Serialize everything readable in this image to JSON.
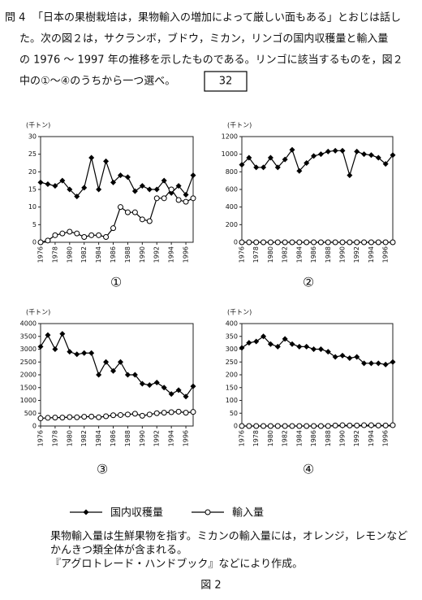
{
  "question": {
    "number": "問 4",
    "lines": [
      "「日本の果樹栽培は，果物輸入の増加によって厳しい面もある」とおじは話し",
      "た。次の図２は，サクランボ，ブドウ，ミカン，リンゴの国内収穫量と輸入量",
      "の 1976 ～ 1997 年の推移を示したものである。リンゴに該当するものを，図２",
      "中の①～④のうちから一つ選べ。"
    ],
    "answer_box": "32"
  },
  "chart_data": [
    {
      "type": "line",
      "label": "①",
      "y_label": "(千トン)",
      "x": [
        1976,
        1977,
        1978,
        1979,
        1980,
        1981,
        1982,
        1983,
        1984,
        1985,
        1986,
        1987,
        1988,
        1989,
        1990,
        1991,
        1992,
        1993,
        1994,
        1995,
        1996,
        1997
      ],
      "xlim": [
        1976,
        1997
      ],
      "xticks": [
        1976,
        1978,
        1980,
        1982,
        1984,
        1986,
        1988,
        1990,
        1992,
        1994,
        1996
      ],
      "ylim": [
        0,
        30
      ],
      "yticks": [
        0,
        5,
        10,
        15,
        20,
        25,
        30
      ],
      "series": [
        {
          "name": "国内収穫量",
          "color": "#000",
          "marker": "diamond",
          "values": [
            17,
            16.5,
            16,
            17.5,
            15,
            13,
            15.5,
            24,
            15,
            23,
            17,
            19,
            18.5,
            14.5,
            16,
            15,
            15,
            17.5,
            14,
            16,
            13.5,
            19
          ]
        },
        {
          "name": "輸入量",
          "color": "#000",
          "marker": "circle",
          "values": [
            0,
            0.5,
            2,
            2.5,
            3,
            2.5,
            1.5,
            2,
            2,
            1.5,
            4,
            10,
            8.5,
            8.5,
            6.5,
            6,
            12.5,
            12.5,
            15,
            12,
            11.5,
            12.5
          ]
        }
      ]
    },
    {
      "type": "line",
      "label": "②",
      "y_label": "(千トン)",
      "x": [
        1976,
        1977,
        1978,
        1979,
        1980,
        1981,
        1982,
        1983,
        1984,
        1985,
        1986,
        1987,
        1988,
        1989,
        1990,
        1991,
        1992,
        1993,
        1994,
        1995,
        1996,
        1997
      ],
      "xlim": [
        1976,
        1997
      ],
      "xticks": [
        1976,
        1978,
        1980,
        1982,
        1984,
        1986,
        1988,
        1990,
        1992,
        1994,
        1996
      ],
      "ylim": [
        0,
        1200
      ],
      "yticks": [
        0,
        200,
        400,
        600,
        800,
        1000,
        1200
      ],
      "series": [
        {
          "color": "#000",
          "marker": "diamond",
          "values": [
            880,
            960,
            850,
            850,
            960,
            850,
            940,
            1050,
            810,
            900,
            980,
            1000,
            1030,
            1040,
            1040,
            760,
            1030,
            1000,
            990,
            960,
            890,
            990
          ]
        },
        {
          "color": "#000",
          "marker": "circle",
          "values": [
            0,
            0,
            0,
            0,
            0,
            0,
            0,
            0,
            0,
            0,
            0,
            0,
            0,
            0,
            0,
            0,
            0,
            0,
            0,
            0,
            0,
            0
          ]
        }
      ]
    },
    {
      "type": "line",
      "label": "③",
      "y_label": "(千トン)",
      "x": [
        1976,
        1977,
        1978,
        1979,
        1980,
        1981,
        1982,
        1983,
        1984,
        1985,
        1986,
        1987,
        1988,
        1989,
        1990,
        1991,
        1992,
        1993,
        1994,
        1995,
        1996,
        1997
      ],
      "xlim": [
        1976,
        1997
      ],
      "xticks": [
        1976,
        1978,
        1980,
        1982,
        1984,
        1986,
        1988,
        1990,
        1992,
        1994,
        1996
      ],
      "ylim": [
        0,
        4000
      ],
      "yticks": [
        0,
        500,
        1000,
        1500,
        2000,
        2500,
        3000,
        3500,
        4000
      ],
      "series": [
        {
          "color": "#000",
          "marker": "diamond",
          "values": [
            3100,
            3550,
            3000,
            3600,
            2900,
            2800,
            2850,
            2850,
            2000,
            2500,
            2150,
            2500,
            2000,
            2000,
            1650,
            1600,
            1700,
            1500,
            1250,
            1400,
            1150,
            1550
          ]
        },
        {
          "color": "#000",
          "marker": "circle",
          "values": [
            300,
            320,
            330,
            330,
            350,
            340,
            360,
            370,
            340,
            380,
            420,
            430,
            450,
            480,
            400,
            450,
            500,
            520,
            540,
            560,
            520,
            550
          ]
        }
      ]
    },
    {
      "type": "line",
      "label": "④",
      "y_label": "(千トン)",
      "x": [
        1976,
        1977,
        1978,
        1979,
        1980,
        1981,
        1982,
        1983,
        1984,
        1985,
        1986,
        1987,
        1988,
        1989,
        1990,
        1991,
        1992,
        1993,
        1994,
        1995,
        1996,
        1997
      ],
      "xlim": [
        1976,
        1997
      ],
      "xticks": [
        1976,
        1978,
        1980,
        1982,
        1984,
        1986,
        1988,
        1990,
        1992,
        1994,
        1996
      ],
      "ylim": [
        0,
        400
      ],
      "yticks": [
        0,
        50,
        100,
        150,
        200,
        250,
        300,
        350,
        400
      ],
      "series": [
        {
          "color": "#000",
          "marker": "diamond",
          "values": [
            305,
            325,
            330,
            350,
            320,
            310,
            340,
            320,
            310,
            310,
            300,
            300,
            290,
            270,
            275,
            265,
            270,
            245,
            245,
            245,
            240,
            250
          ]
        },
        {
          "color": "#000",
          "marker": "circle",
          "values": [
            0,
            0,
            0,
            0,
            0,
            0,
            0,
            0,
            0,
            0,
            0,
            0,
            0,
            2,
            3,
            2,
            2,
            3,
            3,
            2,
            2,
            3
          ]
        }
      ]
    }
  ],
  "notes": [
    "果物輸入量は生鮮果物を指す。ミカンの輸入量には，オレンジ，レモンなど",
    "かんきつ類全体が含まれる。",
    "『アグロトレード・ハンドブック』などにより作成。"
  ],
  "figure_label": "図 2"
}
